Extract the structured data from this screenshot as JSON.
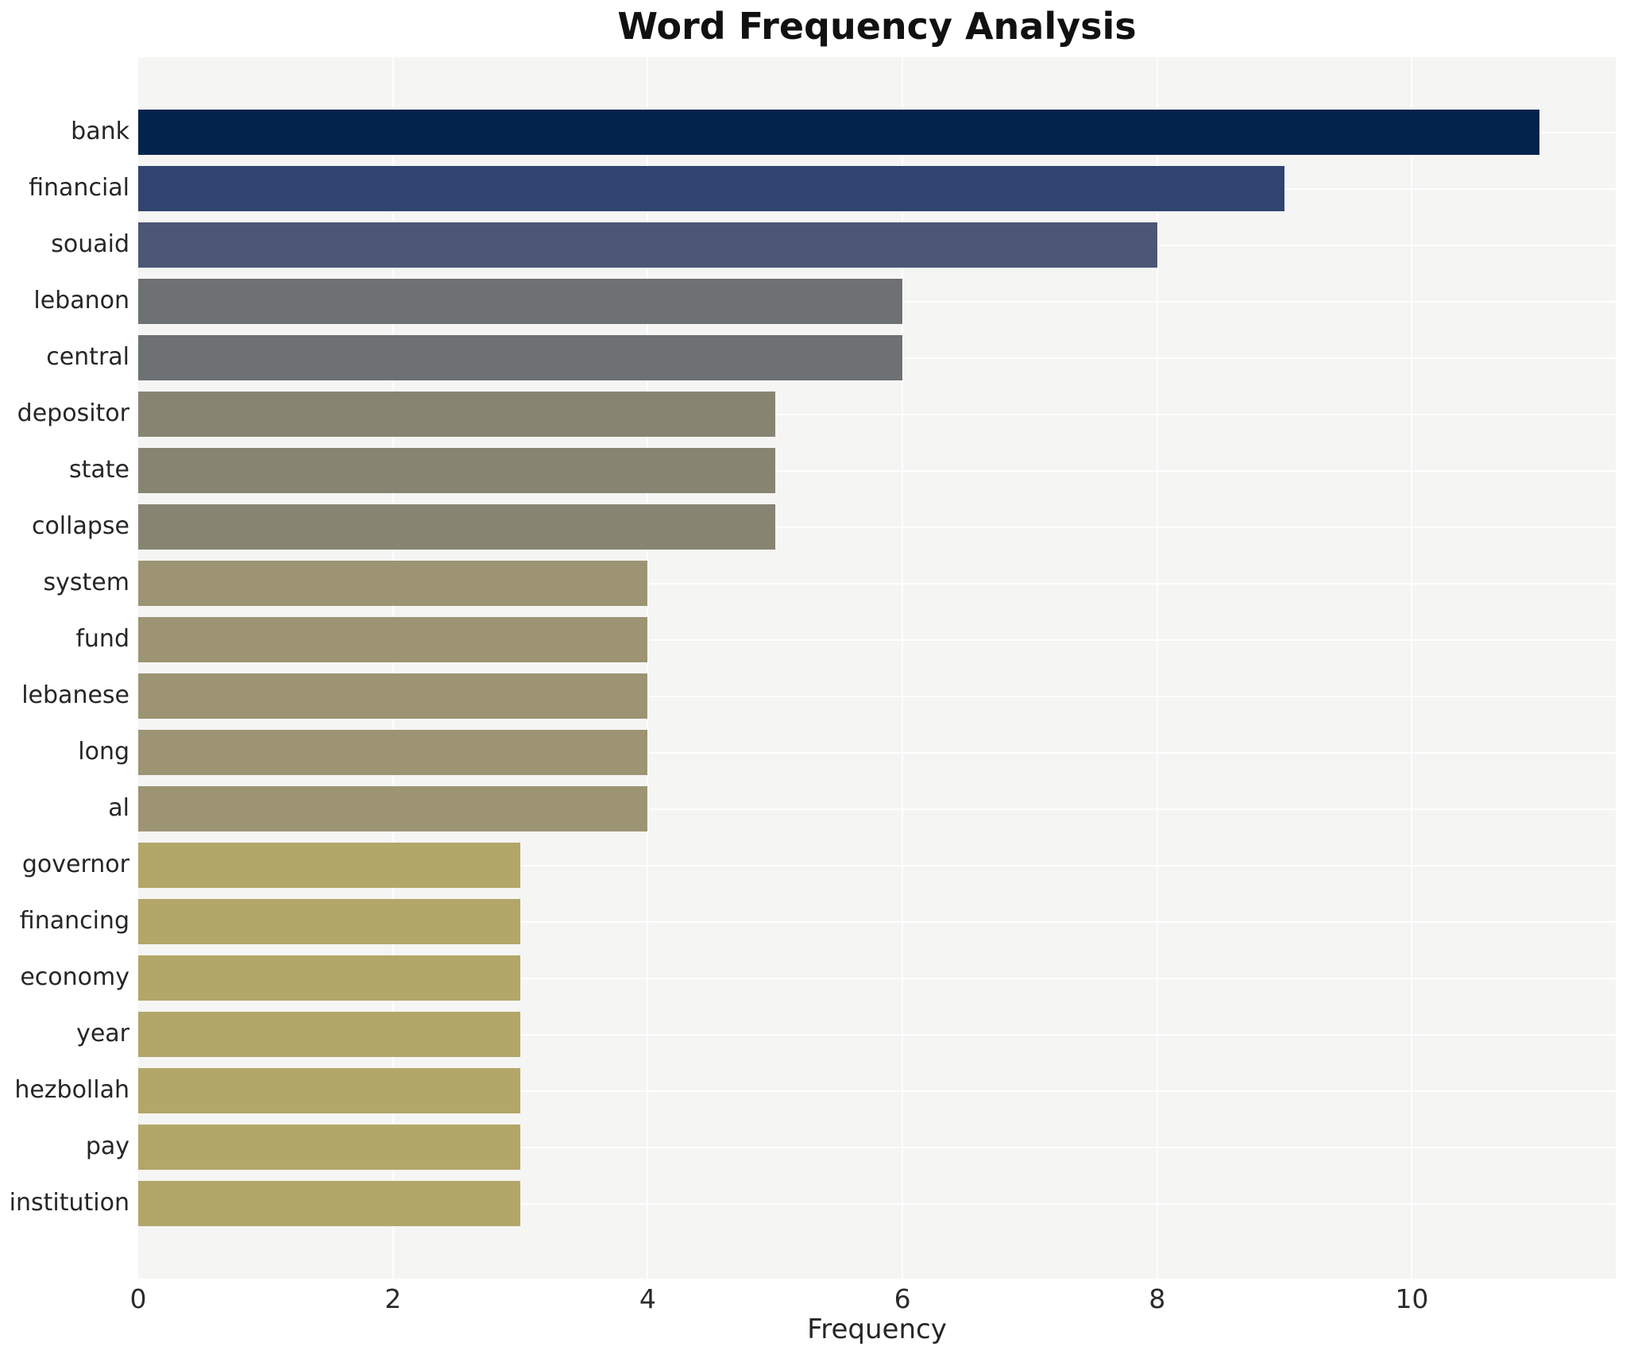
{
  "title": "Word Frequency Analysis",
  "xlabel": "Frequency",
  "chart_data": {
    "type": "bar",
    "orientation": "horizontal",
    "title": "Word Frequency Analysis",
    "xlabel": "Frequency",
    "categories": [
      "bank",
      "financial",
      "souaid",
      "lebanon",
      "central",
      "depositor",
      "state",
      "collapse",
      "system",
      "fund",
      "lebanese",
      "long",
      "al",
      "governor",
      "financing",
      "economy",
      "year",
      "hezbollah",
      "pay",
      "institution"
    ],
    "values": [
      11,
      9,
      8,
      6,
      6,
      5,
      5,
      5,
      4,
      4,
      4,
      4,
      4,
      3,
      3,
      3,
      3,
      3,
      3,
      3
    ],
    "bar_colors": [
      "#03234d",
      "#30446f",
      "#4c5777",
      "#6e7173",
      "#6e7173",
      "#878572",
      "#878572",
      "#878572",
      "#9c9473",
      "#9c9473",
      "#9c9473",
      "#9c9473",
      "#9c9473",
      "#b3a669",
      "#b3a669",
      "#b3a669",
      "#b3a669",
      "#b3a669",
      "#b3a669",
      "#b3a669"
    ],
    "xticks": [
      0,
      2,
      4,
      6,
      8,
      10
    ],
    "xlim": [
      0,
      11.6
    ],
    "grid": true,
    "legend": "none",
    "plot_background": "#f5f5f4",
    "grid_color": "#ffffff",
    "text_color": "#262626"
  }
}
